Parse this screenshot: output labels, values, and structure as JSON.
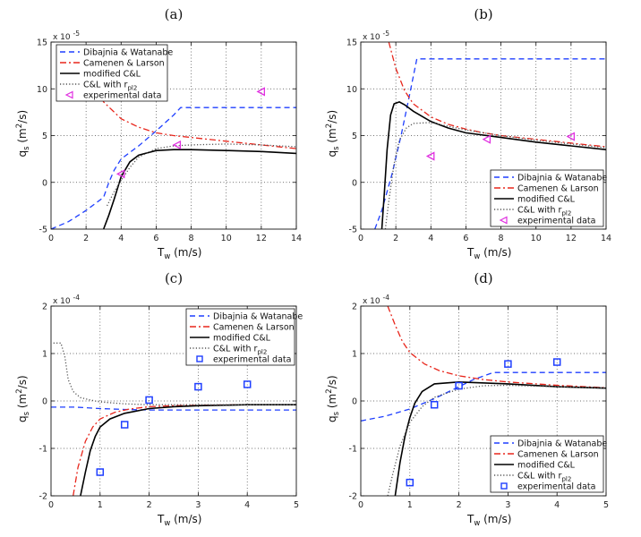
{
  "chart_data": [
    {
      "panel_label": "(a)",
      "type": "line",
      "xlabel": "T_w (m/s)",
      "ylabel": "q_s (m^2/s)",
      "xlim": [
        0,
        14
      ],
      "ylim": [
        -5,
        15
      ],
      "xticks": [
        "0",
        "2",
        "4",
        "6",
        "8",
        "10",
        "12",
        "14"
      ],
      "yticks": [
        "-5",
        "0",
        "5",
        "10",
        "15"
      ],
      "y_exponent": "x 10",
      "y_exponent_power": "-5",
      "grid": true,
      "legend": {
        "position": "top-left",
        "entries": [
          "Dibajnia & Watanabe",
          "Camenen & Larson",
          "modified C&L",
          "C&L with r",
          "experimental data"
        ],
        "sub": "pl2"
      },
      "series": [
        {
          "name": "Dibajnia & Watanabe",
          "color": "#1f3fff",
          "style": "dashed",
          "x": [
            0,
            1,
            2,
            3,
            3.3,
            3.6,
            4,
            5,
            6,
            7,
            7.4,
            14
          ],
          "y": [
            -5,
            -4.2,
            -3,
            -1.6,
            0,
            1.3,
            2.5,
            3.9,
            5.5,
            7.2,
            8,
            8
          ]
        },
        {
          "name": "Camenen & Larson",
          "color": "#e8261c",
          "style": "dashdot",
          "x": [
            1.9,
            2.5,
            3,
            4,
            5,
            6,
            7,
            8,
            10,
            12,
            14
          ],
          "y": [
            14.5,
            10.5,
            8.6,
            6.8,
            5.9,
            5.3,
            5,
            4.8,
            4.4,
            4,
            3.6
          ]
        },
        {
          "name": "modified C&L",
          "color": "#000000",
          "style": "solid",
          "x": [
            3,
            3.3,
            3.6,
            4,
            4.5,
            5,
            6,
            7,
            8,
            10,
            12,
            14
          ],
          "y": [
            -5,
            -3.5,
            -1.8,
            0.6,
            2.2,
            2.9,
            3.4,
            3.5,
            3.5,
            3.4,
            3.3,
            3.1
          ]
        },
        {
          "name": "C&L with r_pl2",
          "color": "#555555",
          "style": "dotted",
          "x": [
            3.2,
            3.6,
            4,
            4.5,
            5,
            6,
            7,
            8,
            10,
            12,
            14
          ],
          "y": [
            -2.5,
            -1,
            0.2,
            1.6,
            2.7,
            3.6,
            3.9,
            4,
            4.1,
            4,
            3.8
          ]
        }
      ],
      "points": {
        "name": "experimental data",
        "marker": "triangle-left",
        "color": "#e030e0",
        "x": [
          4,
          7.2,
          12
        ],
        "y": [
          0.9,
          4,
          9.7
        ]
      }
    },
    {
      "panel_label": "(b)",
      "type": "line",
      "xlabel": "T_w (m/s)",
      "ylabel": "q_s (m^2/s)",
      "xlim": [
        0,
        14
      ],
      "ylim": [
        -5,
        15
      ],
      "xticks": [
        "0",
        "2",
        "4",
        "6",
        "8",
        "10",
        "12",
        "14"
      ],
      "yticks": [
        "-5",
        "0",
        "5",
        "10",
        "15"
      ],
      "y_exponent": "x 10",
      "y_exponent_power": "-5",
      "grid": true,
      "legend": {
        "position": "bottom-right",
        "entries": [
          "Dibajnia & Watanabe",
          "Camenen & Larson",
          "modified C&L",
          "C&L with r",
          "experimental data"
        ],
        "sub": "pl2"
      },
      "series": [
        {
          "name": "Dibajnia & Watanabe",
          "color": "#1f3fff",
          "style": "dashed",
          "x": [
            0.8,
            1.2,
            1.8,
            2.3,
            2.8,
            3.2,
            14
          ],
          "y": [
            -5,
            -3,
            1,
            5,
            9.5,
            13.2,
            13.2
          ]
        },
        {
          "name": "Camenen & Larson",
          "color": "#e8261c",
          "style": "dashdot",
          "x": [
            1.6,
            2,
            2.5,
            3,
            4,
            5,
            6,
            7,
            8,
            10,
            12,
            14
          ],
          "y": [
            15,
            12.2,
            9.8,
            8.4,
            7,
            6.2,
            5.7,
            5.3,
            5,
            4.6,
            4.2,
            3.8
          ]
        },
        {
          "name": "modified C&L",
          "color": "#000000",
          "style": "solid",
          "x": [
            1.2,
            1.35,
            1.5,
            1.7,
            1.9,
            2.2,
            2.5,
            3,
            4,
            5,
            6,
            8,
            10,
            12,
            14
          ],
          "y": [
            -5,
            -1,
            3.5,
            7.2,
            8.4,
            8.6,
            8.3,
            7.6,
            6.5,
            5.8,
            5.3,
            4.8,
            4.3,
            3.9,
            3.5
          ]
        },
        {
          "name": "C&L with r_pl2",
          "color": "#555555",
          "style": "dotted",
          "x": [
            1.4,
            1.6,
            1.9,
            2.2,
            2.6,
            3,
            4,
            5,
            6,
            8,
            10,
            12,
            14
          ],
          "y": [
            -5,
            -2,
            2,
            4.5,
            5.8,
            6.3,
            6.4,
            6,
            5.6,
            5,
            4.5,
            4.1,
            3.7
          ]
        }
      ],
      "points": {
        "name": "experimental data",
        "marker": "triangle-left",
        "color": "#e030e0",
        "x": [
          4,
          7.2,
          12
        ],
        "y": [
          2.8,
          4.6,
          4.9
        ]
      }
    },
    {
      "panel_label": "(c)",
      "type": "line",
      "xlabel": "T_w (m/s)",
      "ylabel": "q_s (m^2/s)",
      "xlim": [
        0,
        5
      ],
      "ylim": [
        -2,
        2
      ],
      "xticks": [
        "0",
        "1",
        "2",
        "3",
        "4",
        "5"
      ],
      "yticks": [
        "-2",
        "-1",
        "0",
        "1",
        "2"
      ],
      "y_exponent": "x 10",
      "y_exponent_power": "-4",
      "grid": true,
      "legend": {
        "position": "top-right",
        "entries": [
          "Dibajnia & Watanabe",
          "Camenen & Larson",
          "modified C&L",
          "C&L with r",
          "experimental data"
        ],
        "sub": "pl2"
      },
      "series": [
        {
          "name": "Dibajnia & Watanabe",
          "color": "#1f3fff",
          "style": "dashed",
          "x": [
            0,
            0.5,
            1,
            1.5,
            2,
            2.5,
            3,
            3.5,
            4,
            5
          ],
          "y": [
            -0.13,
            -0.13,
            -0.16,
            -0.18,
            -0.19,
            -0.19,
            -0.19,
            -0.19,
            -0.19,
            -0.19
          ]
        },
        {
          "name": "Camenen & Larson",
          "color": "#e8261c",
          "style": "dashdot",
          "x": [
            0.45,
            0.55,
            0.7,
            0.85,
            1,
            1.3,
            1.6,
            2,
            2.5,
            3,
            4,
            5
          ],
          "y": [
            -2,
            -1.4,
            -0.85,
            -0.55,
            -0.38,
            -0.24,
            -0.17,
            -0.12,
            -0.1,
            -0.09,
            -0.08,
            -0.08
          ]
        },
        {
          "name": "modified C&L",
          "color": "#000000",
          "style": "solid",
          "x": [
            0.6,
            0.7,
            0.8,
            0.9,
            1,
            1.2,
            1.5,
            2,
            2.5,
            3,
            4,
            5
          ],
          "y": [
            -2,
            -1.5,
            -1.05,
            -0.75,
            -0.55,
            -0.38,
            -0.26,
            -0.16,
            -0.12,
            -0.1,
            -0.08,
            -0.08
          ]
        },
        {
          "name": "C&L with r_pl2",
          "color": "#555555",
          "style": "dotted",
          "x": [
            0.05,
            0.2,
            0.28,
            0.35,
            0.45,
            0.6,
            0.8,
            1,
            1.5,
            2,
            3,
            4,
            5
          ],
          "y": [
            1.22,
            1.22,
            0.95,
            0.45,
            0.2,
            0.07,
            0.02,
            -0.02,
            -0.06,
            -0.08,
            -0.08,
            -0.08,
            -0.08
          ]
        }
      ],
      "points": {
        "name": "experimental data",
        "marker": "square",
        "color": "#1f3fff",
        "x": [
          1,
          1.5,
          2,
          3,
          4
        ],
        "y": [
          -1.5,
          -0.5,
          0.02,
          0.3,
          0.35
        ]
      }
    },
    {
      "panel_label": "(d)",
      "type": "line",
      "xlabel": "T_w (m/s)",
      "ylabel": "q_s (m^2/s)",
      "xlim": [
        0,
        5
      ],
      "ylim": [
        -2,
        2
      ],
      "xticks": [
        "0",
        "1",
        "2",
        "3",
        "4",
        "5"
      ],
      "yticks": [
        "-2",
        "-1",
        "0",
        "1",
        "2"
      ],
      "y_exponent": "x 10",
      "y_exponent_power": "-4",
      "grid": true,
      "legend": {
        "position": "bottom-right",
        "entries": [
          "Dibajnia & Watanabe",
          "Camenen & Larson",
          "modified C&L",
          "C&L with r",
          "experimental data"
        ],
        "sub": "pl2"
      },
      "series": [
        {
          "name": "Dibajnia & Watanabe",
          "color": "#1f3fff",
          "style": "dashed",
          "x": [
            0,
            0.5,
            1,
            1.5,
            2,
            2.3,
            2.7,
            5
          ],
          "y": [
            -0.42,
            -0.32,
            -0.17,
            0.05,
            0.3,
            0.45,
            0.6,
            0.6
          ]
        },
        {
          "name": "Camenen & Larson",
          "color": "#e8261c",
          "style": "dashdot",
          "x": [
            0.55,
            0.7,
            0.85,
            1,
            1.3,
            1.6,
            2,
            2.5,
            3,
            4,
            5
          ],
          "y": [
            2,
            1.6,
            1.25,
            1.02,
            0.78,
            0.64,
            0.53,
            0.45,
            0.4,
            0.33,
            0.28
          ]
        },
        {
          "name": "modified C&L",
          "color": "#000000",
          "style": "solid",
          "x": [
            0.7,
            0.8,
            0.9,
            1,
            1.1,
            1.25,
            1.5,
            2,
            3,
            4,
            5
          ],
          "y": [
            -2,
            -1.3,
            -0.75,
            -0.35,
            -0.05,
            0.2,
            0.36,
            0.4,
            0.36,
            0.3,
            0.27
          ]
        },
        {
          "name": "C&L with r_pl2",
          "color": "#555555",
          "style": "dotted",
          "x": [
            0.55,
            0.65,
            0.8,
            1,
            1.25,
            1.5,
            2,
            2.5,
            3,
            4,
            5
          ],
          "y": [
            -2,
            -1.55,
            -0.95,
            -0.45,
            -0.12,
            0.08,
            0.25,
            0.32,
            0.33,
            0.3,
            0.27
          ]
        }
      ],
      "points": {
        "name": "experimental data",
        "marker": "square",
        "color": "#1f3fff",
        "x": [
          1,
          1.5,
          2,
          3,
          4
        ],
        "y": [
          -1.72,
          -0.08,
          0.32,
          0.78,
          0.82
        ]
      }
    }
  ]
}
